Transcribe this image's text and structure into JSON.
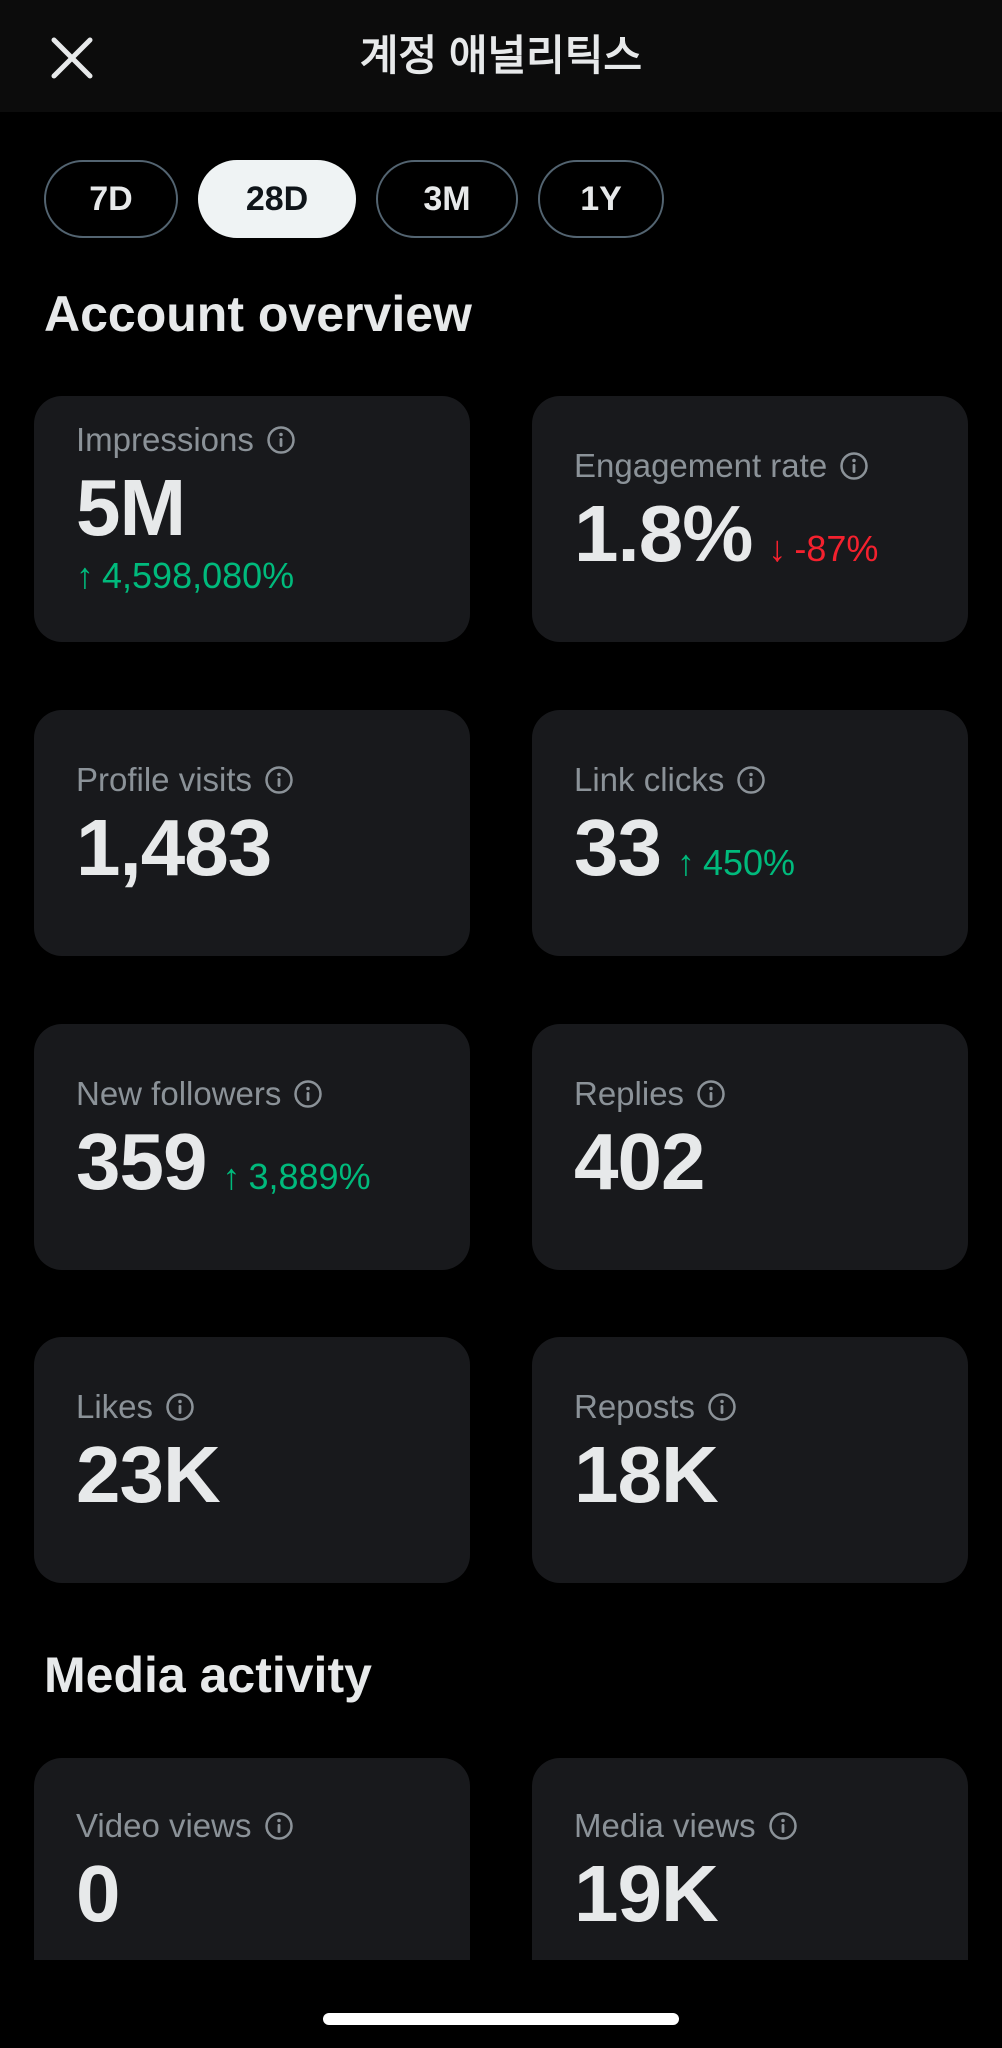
{
  "header": {
    "title": "계정 애널리틱스",
    "close_icon": "close-icon"
  },
  "periods": {
    "items": [
      "7D",
      "28D",
      "3M",
      "1Y"
    ],
    "selected": "28D"
  },
  "account_overview": {
    "title": "Account overview",
    "cards": [
      {
        "label": "Impressions",
        "value": "5M",
        "delta": "4,598,080%",
        "direction": "up"
      },
      {
        "label": "Engagement rate",
        "value": "1.8%",
        "delta": "-87%",
        "direction": "down"
      },
      {
        "label": "Profile visits",
        "value": "1,483"
      },
      {
        "label": "Link clicks",
        "value": "33",
        "delta": "450%",
        "direction": "up"
      },
      {
        "label": "New followers",
        "value": "359",
        "delta": "3,889%",
        "direction": "up"
      },
      {
        "label": "Replies",
        "value": "402"
      },
      {
        "label": "Likes",
        "value": "23K"
      },
      {
        "label": "Reposts",
        "value": "18K"
      }
    ]
  },
  "media_activity": {
    "title": "Media activity",
    "cards": [
      {
        "label": "Video views",
        "value": "0"
      },
      {
        "label": "Media views",
        "value": "19K"
      }
    ]
  },
  "colors": {
    "background": "#000000",
    "card": "#18191c",
    "positive": "#00ba7c",
    "negative": "#f4212e",
    "label": "#8b9298"
  }
}
